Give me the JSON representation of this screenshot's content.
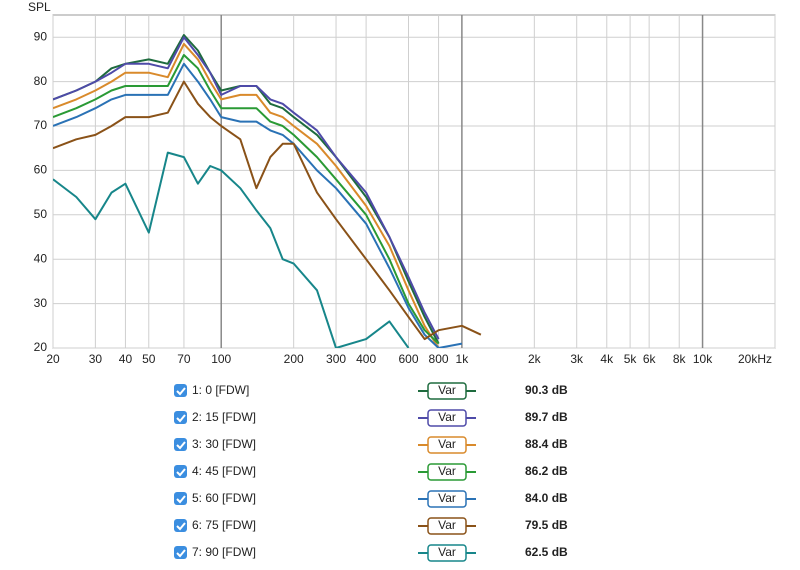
{
  "chart_data": {
    "type": "line",
    "y_label": "SPL",
    "log_x": true,
    "grid": true,
    "x": [
      20,
      25,
      30,
      35,
      40,
      50,
      60,
      70,
      80,
      90,
      100,
      120,
      140,
      160,
      180,
      200,
      250,
      300,
      400,
      500,
      600,
      700,
      800,
      1000,
      1200
    ],
    "xlim": [
      20,
      20000
    ],
    "xticks": [
      20,
      30,
      40,
      50,
      70,
      100,
      200,
      300,
      400,
      600,
      800,
      {
        "value": 1000,
        "label": "1k"
      },
      {
        "value": 2000,
        "label": "2k"
      },
      {
        "value": 3000,
        "label": "3k"
      },
      {
        "value": 4000,
        "label": "4k"
      },
      {
        "value": 5000,
        "label": "5k"
      },
      {
        "value": 6000,
        "label": "6k"
      },
      {
        "value": 8000,
        "label": "8k"
      },
      {
        "value": 10000,
        "label": "10k"
      },
      {
        "value": 20000,
        "label": "20kHz"
      }
    ],
    "ylim": [
      20,
      95
    ],
    "yticks": [
      20,
      30,
      40,
      50,
      60,
      70,
      80,
      90
    ],
    "button": "Var",
    "series": [
      {
        "name": "1: 0 [FDW]",
        "color": "#1e6b3e",
        "level": "90.3 dB",
        "values": [
          76,
          78,
          80,
          83,
          84,
          85,
          84,
          90.5,
          87,
          82,
          78,
          79,
          79,
          75,
          74,
          72,
          68,
          63,
          54,
          45,
          35,
          27,
          21,
          null,
          null
        ]
      },
      {
        "name": "2: 15 [FDW]",
        "color": "#4e4aa8",
        "level": "89.7 dB",
        "values": [
          76,
          78,
          80,
          82,
          84,
          84,
          83,
          90,
          86,
          82,
          77,
          79,
          79,
          76,
          75,
          73,
          69,
          63,
          55,
          45,
          36,
          28,
          22,
          null,
          null
        ]
      },
      {
        "name": "3: 30 [FDW]",
        "color": "#d98a2b",
        "level": "88.4 dB",
        "values": [
          74,
          76,
          78,
          80,
          82,
          82,
          81,
          88.5,
          85,
          80,
          76,
          77,
          77,
          73,
          72,
          70,
          66,
          61,
          52,
          43,
          33,
          25,
          20,
          null,
          null
        ]
      },
      {
        "name": "4: 45 [FDW]",
        "color": "#2a9a35",
        "level": "86.2 dB",
        "values": [
          72,
          74,
          76,
          78,
          79,
          79,
          79,
          86,
          83,
          78,
          74,
          74,
          74,
          71,
          70,
          68,
          63,
          58,
          50,
          40,
          30,
          24,
          21,
          null,
          null
        ]
      },
      {
        "name": "5: 60 [FDW]",
        "color": "#2a72b5",
        "level": "84.0 dB",
        "values": [
          70,
          72,
          74,
          76,
          77,
          77,
          77,
          84,
          80,
          76,
          72,
          71,
          71,
          69,
          68,
          66,
          60,
          56,
          48,
          38,
          29,
          23,
          20,
          21,
          null
        ]
      },
      {
        "name": "6: 75 [FDW]",
        "color": "#8a5218",
        "level": "79.5 dB",
        "values": [
          65,
          67,
          68,
          70,
          72,
          72,
          73,
          80,
          75,
          72,
          70,
          67,
          56,
          63,
          66,
          66,
          55,
          49,
          40,
          33,
          27,
          22,
          24,
          25,
          23
        ]
      },
      {
        "name": "7: 90 [FDW]",
        "color": "#17868a",
        "level": "62.5 dB",
        "values": [
          58,
          54,
          49,
          55,
          57,
          46,
          64,
          63,
          57,
          61,
          60,
          56,
          51,
          47,
          40,
          39,
          33,
          20,
          22,
          26,
          20,
          null,
          null,
          null,
          null
        ]
      }
    ]
  }
}
